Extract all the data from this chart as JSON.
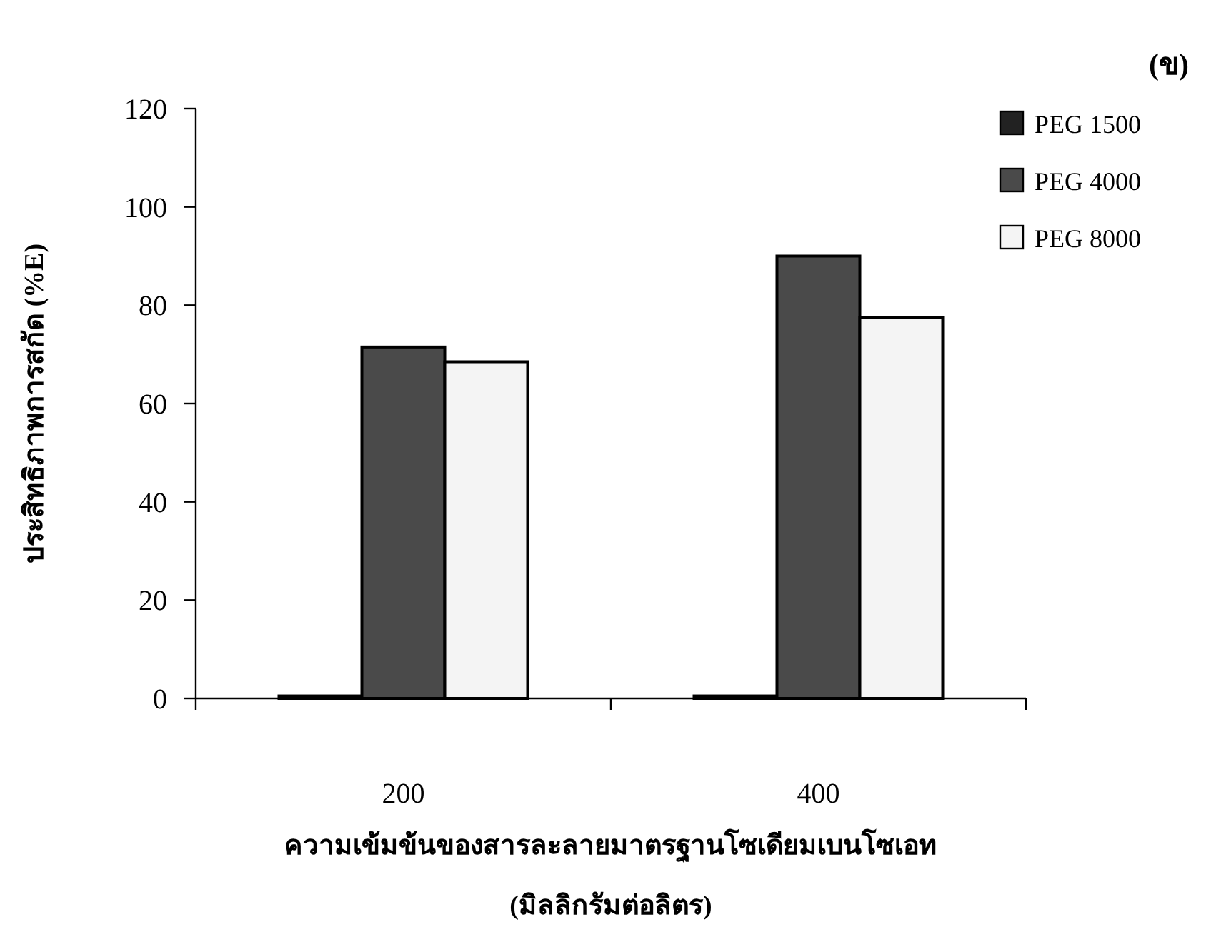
{
  "chart_data": {
    "type": "bar",
    "title": "(ข)",
    "xlabel": "ความเข้มข้นของสารละลายมาตรฐานโซเดียมเบนโซเอท (มิลลิกรัมต่อลิตร)",
    "ylabel": "ประสิทธิภาพการสกัด (%E)",
    "categories": [
      "200",
      "400"
    ],
    "series": [
      {
        "name": "PEG 1500",
        "color": "#222222",
        "values": [
          0.5,
          0.5
        ]
      },
      {
        "name": "PEG 4000",
        "color": "#4a4a4a",
        "values": [
          71.5,
          90
        ]
      },
      {
        "name": "PEG 8000",
        "color": "#f4f4f4",
        "values": [
          68.5,
          77.5
        ]
      }
    ],
    "ylim": [
      0,
      120
    ],
    "yticks": [
      0,
      20,
      40,
      60,
      80,
      100,
      120
    ],
    "grid": false,
    "legend": "top right"
  }
}
